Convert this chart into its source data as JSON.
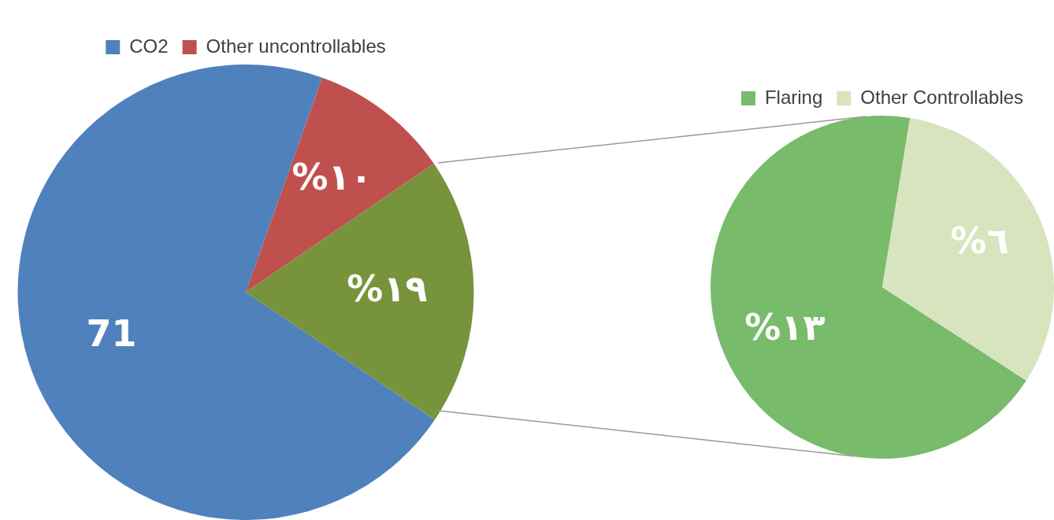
{
  "chart_data": [
    {
      "type": "pie",
      "categories": [
        "CO2",
        "Other uncontrollables",
        null
      ],
      "values": [
        71,
        10,
        19
      ],
      "colors": [
        "#4f81bd",
        "#c0504d",
        "#77933c"
      ],
      "value_labels": [
        "71",
        "%١٠",
        "%١٩"
      ],
      "legend": "top"
    },
    {
      "type": "pie",
      "categories": [
        "Flaring",
        "Other Controllables"
      ],
      "values": [
        13,
        6
      ],
      "colors": [
        "#77bb6b",
        "#d7e4bd"
      ],
      "value_labels": [
        "%١٣",
        "%٦"
      ],
      "legend": "top"
    }
  ]
}
